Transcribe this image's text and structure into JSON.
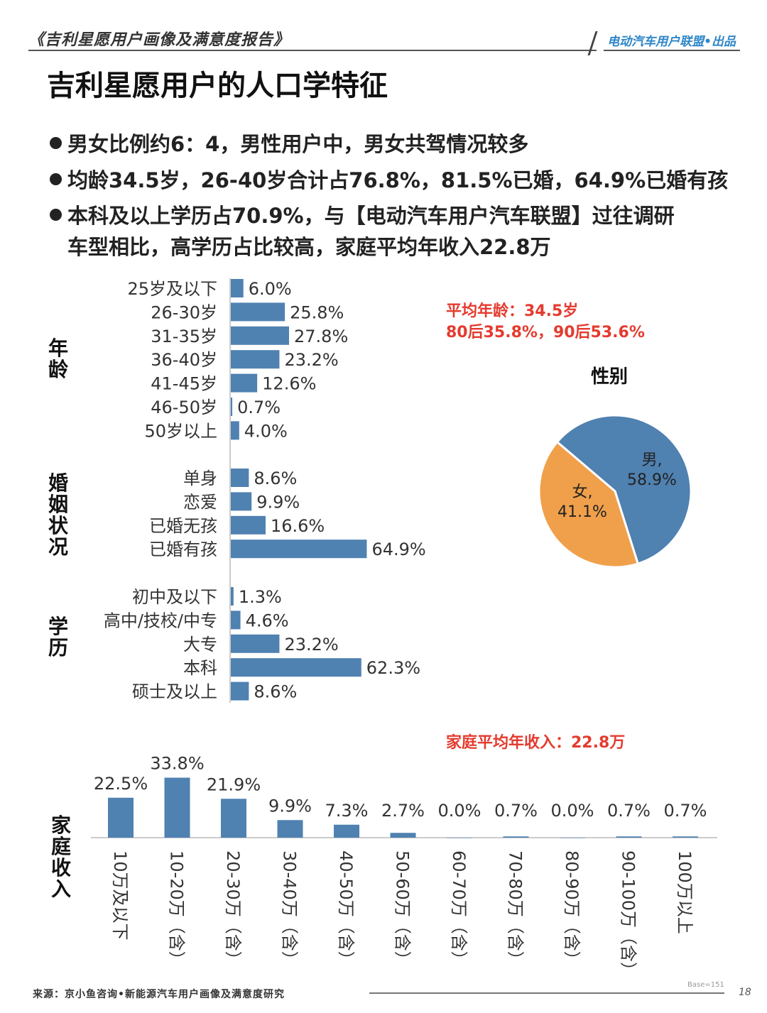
{
  "header": {
    "report_title": "《吉利星愿用户画像及满意度报告》",
    "brand": "电动汽车用户联盟•出品"
  },
  "page_title": "吉利星愿用户的人口学特征",
  "bullets": [
    {
      "line1": "男女比例约6：4，男性用户中，男女共驾情况较多",
      "line2": ""
    },
    {
      "line1": "均龄34.5岁，26-40岁合计占76.8%，81.5%已婚，64.9%已婚有孩",
      "line2": ""
    },
    {
      "line1": "本科及以上学历占70.9%，与【电动汽车用户汽车联盟】过往调研",
      "line2": "车型相比，高学历占比较高，家庭平均年收入22.8万"
    }
  ],
  "notes": {
    "avg_age": "平均年龄：34.5岁",
    "generations": "80后35.8%，90后53.6%",
    "avg_income": "家庭平均年收入：22.8万"
  },
  "pie_title": "性别",
  "footer": {
    "source": "来源：京小鱼咨询•新能源汽车用户画像及满意度研究",
    "base": "Base=151",
    "page": "18"
  },
  "colors": {
    "bar": "#4f81b1",
    "pie_male": "#4f81b1",
    "pie_female": "#f0a04b",
    "accent_red": "#e43b2f"
  },
  "chart_data": [
    {
      "type": "bar",
      "orientation": "horizontal",
      "group_label": "年龄",
      "categories": [
        "25岁及以下",
        "26-30岁",
        "31-35岁",
        "36-40岁",
        "41-45岁",
        "46-50岁",
        "50岁以上"
      ],
      "values": [
        6.0,
        25.8,
        27.8,
        23.2,
        12.6,
        0.7,
        4.0
      ],
      "value_labels": [
        "6.0%",
        "25.8%",
        "27.8%",
        "23.2%",
        "12.6%",
        "0.7%",
        "4.0%"
      ],
      "unit": "%"
    },
    {
      "type": "bar",
      "orientation": "horizontal",
      "group_label": "婚姻状况",
      "categories": [
        "单身",
        "恋爱",
        "已婚无孩",
        "已婚有孩"
      ],
      "values": [
        8.6,
        9.9,
        16.6,
        64.9
      ],
      "value_labels": [
        "8.6%",
        "9.9%",
        "16.6%",
        "64.9%"
      ],
      "unit": "%"
    },
    {
      "type": "bar",
      "orientation": "horizontal",
      "group_label": "学历",
      "categories": [
        "初中及以下",
        "高中/技校/中专",
        "大专",
        "本科",
        "硕士及以上"
      ],
      "values": [
        1.3,
        4.6,
        23.2,
        62.3,
        8.6
      ],
      "value_labels": [
        "1.3%",
        "4.6%",
        "23.2%",
        "62.3%",
        "8.6%"
      ],
      "unit": "%"
    },
    {
      "type": "pie",
      "title": "性别",
      "slices": [
        {
          "label": "男,",
          "value": 58.9,
          "value_label": "58.9%",
          "color": "#4f81b1"
        },
        {
          "label": "女,",
          "value": 41.1,
          "value_label": "41.1%",
          "color": "#f0a04b"
        }
      ]
    },
    {
      "type": "bar",
      "orientation": "vertical",
      "group_label": "家庭收入",
      "categories": [
        "10万及以下",
        "10-20万（含）",
        "20-30万（含）",
        "30-40万（含）",
        "40-50万（含）",
        "50-60万（含）",
        "60-70万（含）",
        "70-80万（含）",
        "80-90万（含）",
        "90-100万（含）",
        "100万以上"
      ],
      "values": [
        22.5,
        33.8,
        21.9,
        9.9,
        7.3,
        2.7,
        0.0,
        0.7,
        0.0,
        0.7,
        0.7
      ],
      "value_labels": [
        "22.5%",
        "33.8%",
        "21.9%",
        "9.9%",
        "7.3%",
        "2.7%",
        "0.0%",
        "0.7%",
        "0.0%",
        "0.7%",
        "0.7%"
      ],
      "unit": "%"
    }
  ]
}
